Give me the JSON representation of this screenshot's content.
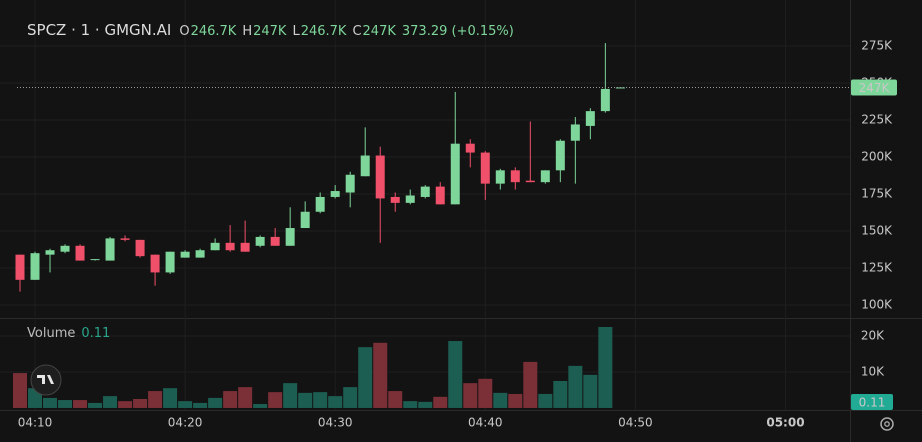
{
  "chart_data": {
    "type": "candlestick",
    "title": "SPCZ · 1 · GMGN.AI",
    "ohlc_legend": [
      {
        "key": "O",
        "value": "246.7K"
      },
      {
        "key": "H",
        "value": "247K"
      },
      {
        "key": "L",
        "value": "246.7K"
      },
      {
        "key": "C",
        "value": "247K"
      }
    ],
    "change": "373.29 (+0.15%)",
    "x": [
      9,
      10,
      11,
      12,
      13,
      14,
      15,
      16,
      17,
      18,
      19,
      20,
      21,
      22,
      23,
      24,
      25,
      26,
      27,
      28,
      29,
      30,
      31,
      32,
      33,
      34,
      35,
      36,
      37,
      38,
      39,
      40,
      41,
      42,
      43,
      44,
      45,
      46,
      47,
      48,
      49
    ],
    "open": [
      134000,
      117000,
      134000,
      136000,
      140000,
      131000,
      130000,
      145000,
      144000,
      134000,
      122000,
      132000,
      132000,
      137000,
      142000,
      142000,
      140000,
      146000,
      140000,
      152000,
      163000,
      173000,
      176000,
      187000,
      201000,
      173000,
      169000,
      173000,
      180000,
      168000,
      209000,
      203000,
      182000,
      191000,
      184000,
      183000,
      191000,
      211000,
      221000,
      231000,
      247000
    ],
    "high": [
      134000,
      136000,
      138000,
      141000,
      141000,
      131000,
      146000,
      147000,
      144000,
      134000,
      136000,
      137000,
      138000,
      145000,
      154000,
      157000,
      147000,
      152000,
      166000,
      170000,
      176000,
      181000,
      190000,
      220000,
      207000,
      176000,
      178000,
      181000,
      183000,
      244000,
      212000,
      204000,
      192000,
      193000,
      224000,
      191000,
      212000,
      227000,
      233000,
      277000,
      247000
    ],
    "low": [
      109000,
      117000,
      122000,
      135000,
      130000,
      130000,
      130000,
      143000,
      132000,
      113000,
      121000,
      132000,
      132000,
      137000,
      136000,
      136000,
      139000,
      140000,
      140000,
      152000,
      162000,
      172000,
      166000,
      187000,
      142000,
      163000,
      168000,
      172000,
      168000,
      168000,
      193000,
      171000,
      178000,
      178000,
      183000,
      182000,
      183000,
      182000,
      212000,
      230000,
      247000
    ],
    "close": [
      117000,
      135000,
      137000,
      140000,
      130000,
      131000,
      145000,
      144000,
      133000,
      122000,
      136000,
      136000,
      137000,
      142000,
      137000,
      136000,
      146000,
      140000,
      152000,
      163000,
      173000,
      177000,
      188000,
      201000,
      172000,
      169000,
      174000,
      180000,
      168000,
      209000,
      203000,
      182000,
      191000,
      183000,
      183000,
      191000,
      211000,
      222000,
      231000,
      246000,
      247000
    ],
    "up_color": "#7ed69a",
    "down_color": "#f0506a",
    "xlim": [
      8.8,
      64.3
    ],
    "xticks": [
      {
        "value": 10,
        "label": "04:10"
      },
      {
        "value": 20,
        "label": "04:20"
      },
      {
        "value": 30,
        "label": "04:30"
      },
      {
        "value": 40,
        "label": "04:40"
      },
      {
        "value": 50,
        "label": "04:50"
      },
      {
        "value": 60,
        "label": "05:00"
      }
    ],
    "ylim": [
      91200,
      306100
    ],
    "yticks": [
      {
        "value": 100000,
        "label": "100K"
      },
      {
        "value": 125000,
        "label": "125K"
      },
      {
        "value": 150000,
        "label": "150K"
      },
      {
        "value": 175000,
        "label": "175K"
      },
      {
        "value": 200000,
        "label": "200K"
      },
      {
        "value": 225000,
        "label": "225K"
      },
      {
        "value": 250000,
        "label": "250K"
      },
      {
        "value": 275000,
        "label": "275K"
      }
    ],
    "last_price": {
      "value": 247000,
      "label": "247K"
    },
    "grid": true,
    "volume": {
      "name": "Volume",
      "values": [
        9700,
        5500,
        2800,
        2200,
        2200,
        1400,
        3300,
        1900,
        2500,
        4700,
        5500,
        1900,
        1400,
        2800,
        4700,
        5800,
        1100,
        4400,
        6900,
        4200,
        4400,
        3300,
        5800,
        16900,
        18100,
        4700,
        1900,
        1700,
        3100,
        18600,
        6900,
        8100,
        4200,
        3900,
        12800,
        3900,
        7500,
        11700,
        9200,
        22500,
        0.11
      ],
      "up_color": "#1d5e52",
      "down_color": "#7b2f37",
      "ylim": [
        -560,
        24440
      ],
      "yticks": [
        {
          "value": 10000,
          "label": "10K"
        },
        {
          "value": 20000,
          "label": "20K"
        }
      ]
    }
  }
}
